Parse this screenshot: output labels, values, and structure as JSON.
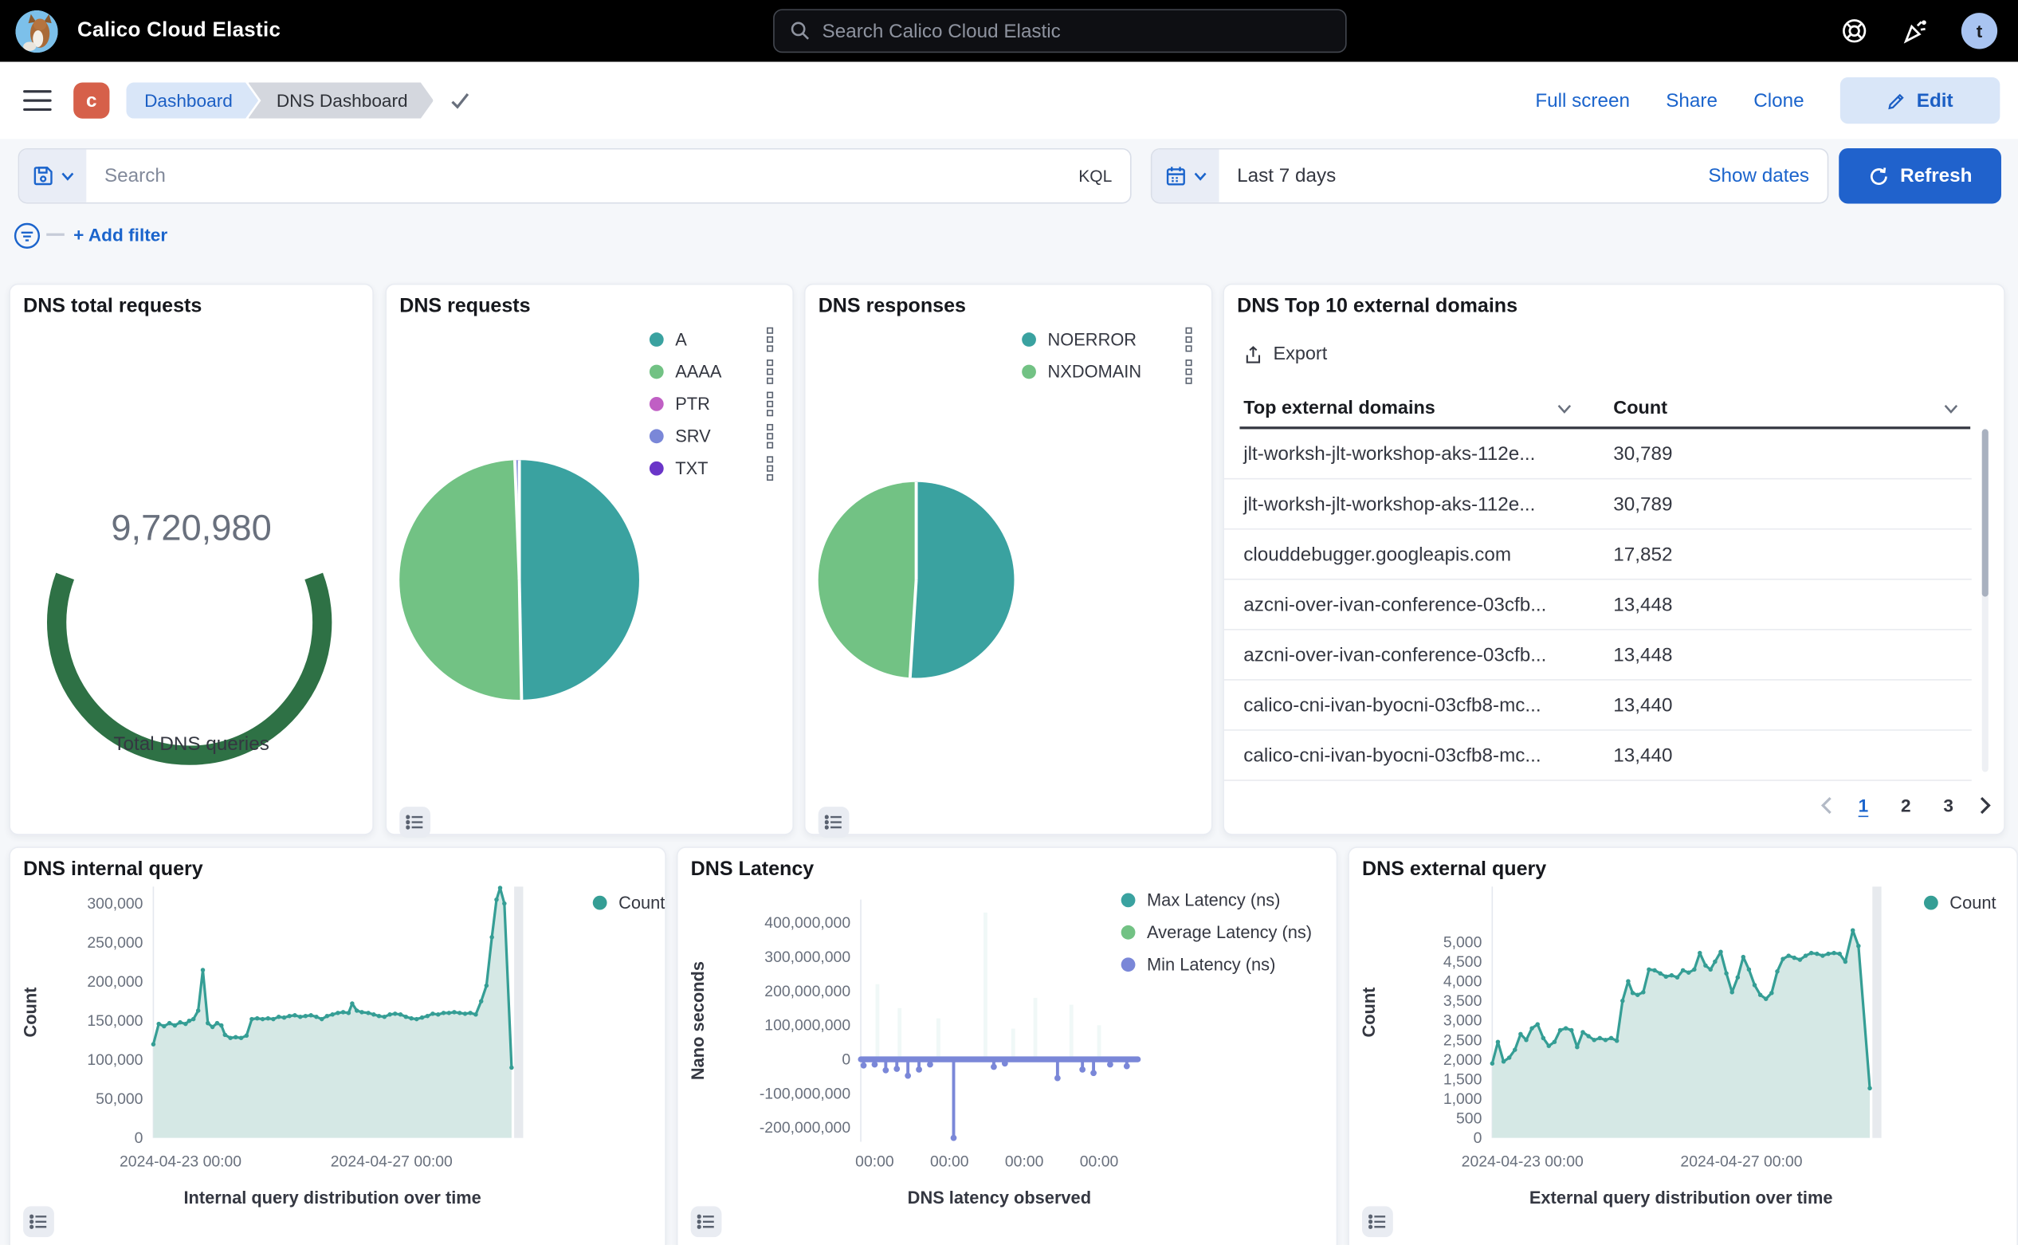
{
  "header": {
    "app_title": "Calico Cloud Elastic",
    "search_placeholder": "Search Calico Cloud Elastic",
    "avatar_initial": "t"
  },
  "nav": {
    "project_badge": "c",
    "breadcrumbs": [
      {
        "label": "Dashboard"
      },
      {
        "label": "DNS Dashboard"
      }
    ],
    "actions": {
      "full_screen": "Full screen",
      "share": "Share",
      "clone": "Clone",
      "edit": "Edit"
    }
  },
  "query_bar": {
    "search_placeholder": "Search",
    "kql_label": "KQL",
    "time_range": "Last 7 days",
    "show_dates": "Show dates",
    "refresh": "Refresh",
    "add_filter": "+ Add filter"
  },
  "colors": {
    "accent_blue": "#1b64cc",
    "refresh_blue": "#2062cc",
    "gauge_green": "#2e7145",
    "teal": "#3aa2a0",
    "green": "#72c284",
    "magenta": "#c05fc4",
    "periwinkle": "#7a87d8",
    "violet": "#6a35c8",
    "badge_orange": "#d6604a"
  },
  "panels": {
    "gauge": {
      "title": "DNS total requests"
    },
    "requests": {
      "title": "DNS requests"
    },
    "responses": {
      "title": "DNS responses"
    },
    "top_domains": {
      "title": "DNS Top 10 external domains",
      "export_label": "Export",
      "pagination": {
        "pages": [
          "1",
          "2",
          "3"
        ],
        "active": "1"
      }
    },
    "internal": {
      "title": "DNS internal query"
    },
    "latency": {
      "title": "DNS Latency"
    },
    "external": {
      "title": "DNS external query"
    }
  },
  "chart_data": [
    {
      "type": "gauge",
      "panel": "DNS total requests",
      "value": 9720980,
      "display_value": "9,720,980",
      "label": "Total DNS queries",
      "color": "#2e7145",
      "arc_sweep_degrees": 220
    },
    {
      "type": "pie",
      "panel": "DNS requests",
      "slices": [
        {
          "label": "A",
          "value": 49.7,
          "color": "#3aa2a0"
        },
        {
          "label": "AAAA",
          "value": 49.7,
          "color": "#72c284"
        },
        {
          "label": "PTR",
          "value": 0.2,
          "color": "#c05fc4"
        },
        {
          "label": "SRV",
          "value": 0.2,
          "color": "#7a87d8"
        },
        {
          "label": "TXT",
          "value": 0.2,
          "color": "#6a35c8"
        }
      ]
    },
    {
      "type": "pie",
      "panel": "DNS responses",
      "slices": [
        {
          "label": "NOERROR",
          "value": 51,
          "color": "#3aa2a0"
        },
        {
          "label": "NXDOMAIN",
          "value": 49,
          "color": "#72c284"
        }
      ]
    },
    {
      "type": "table",
      "panel": "DNS Top 10 external domains",
      "columns": [
        "Top external domains",
        "Count"
      ],
      "rows": [
        [
          "jlt-worksh-jlt-workshop-aks-112e...",
          "30,789"
        ],
        [
          "jlt-worksh-jlt-workshop-aks-112e...",
          "30,789"
        ],
        [
          "clouddebugger.googleapis.com",
          "17,852"
        ],
        [
          "azcni-over-ivan-conference-03cfb...",
          "13,448"
        ],
        [
          "azcni-over-ivan-conference-03cfb...",
          "13,448"
        ],
        [
          "calico-cni-ivan-byocni-03cfb8-mc...",
          "13,440"
        ],
        [
          "calico-cni-ivan-byocni-03cfb8-mc...",
          "13,440"
        ]
      ]
    },
    {
      "type": "area",
      "panel": "DNS internal query",
      "series": [
        {
          "name": "Count",
          "color": "#359e95",
          "fill": "#d5e8e5"
        }
      ],
      "ylabel": "Count",
      "xlabel": "Internal query distribution over time",
      "ylim": [
        0,
        330000
      ],
      "y_ticks": [
        [
          0,
          "0"
        ],
        [
          50000,
          "50,000"
        ],
        [
          100000,
          "100,000"
        ],
        [
          150000,
          "150,000"
        ],
        [
          200000,
          "200,000"
        ],
        [
          250000,
          "250,000"
        ],
        [
          300000,
          "300,000"
        ]
      ],
      "x_ticks": [
        [
          0.076,
          "2024-04-23 00:00"
        ],
        [
          0.665,
          "2024-04-27 00:00"
        ]
      ],
      "points": [
        [
          0,
          120000
        ],
        [
          0.015,
          146000
        ],
        [
          0.03,
          143000
        ],
        [
          0.045,
          147000
        ],
        [
          0.06,
          144000
        ],
        [
          0.075,
          148000
        ],
        [
          0.09,
          146000
        ],
        [
          0.1,
          150000
        ],
        [
          0.112,
          152000
        ],
        [
          0.125,
          163000
        ],
        [
          0.138,
          215000
        ],
        [
          0.152,
          147000
        ],
        [
          0.165,
          142000
        ],
        [
          0.178,
          147000
        ],
        [
          0.19,
          144000
        ],
        [
          0.2,
          132000
        ],
        [
          0.215,
          128000
        ],
        [
          0.23,
          129000
        ],
        [
          0.245,
          128000
        ],
        [
          0.26,
          131000
        ],
        [
          0.275,
          152000
        ],
        [
          0.29,
          153000
        ],
        [
          0.305,
          152000
        ],
        [
          0.32,
          153000
        ],
        [
          0.335,
          152000
        ],
        [
          0.35,
          155000
        ],
        [
          0.365,
          154000
        ],
        [
          0.38,
          156000
        ],
        [
          0.395,
          157000
        ],
        [
          0.41,
          155000
        ],
        [
          0.425,
          156000
        ],
        [
          0.44,
          157000
        ],
        [
          0.455,
          155000
        ],
        [
          0.47,
          152000
        ],
        [
          0.485,
          156000
        ],
        [
          0.5,
          158000
        ],
        [
          0.515,
          160000
        ],
        [
          0.53,
          161000
        ],
        [
          0.545,
          160000
        ],
        [
          0.555,
          172000
        ],
        [
          0.568,
          163000
        ],
        [
          0.582,
          161000
        ],
        [
          0.6,
          160000
        ],
        [
          0.615,
          158000
        ],
        [
          0.63,
          156000
        ],
        [
          0.645,
          155000
        ],
        [
          0.66,
          158000
        ],
        [
          0.675,
          159000
        ],
        [
          0.69,
          158000
        ],
        [
          0.705,
          155000
        ],
        [
          0.72,
          153000
        ],
        [
          0.735,
          152000
        ],
        [
          0.75,
          154000
        ],
        [
          0.765,
          156000
        ],
        [
          0.78,
          159000
        ],
        [
          0.795,
          158000
        ],
        [
          0.81,
          160000
        ],
        [
          0.825,
          160000
        ],
        [
          0.84,
          161000
        ],
        [
          0.855,
          160000
        ],
        [
          0.87,
          159000
        ],
        [
          0.885,
          160000
        ],
        [
          0.9,
          158000
        ],
        [
          0.915,
          175000
        ],
        [
          0.93,
          195000
        ],
        [
          0.945,
          257000
        ],
        [
          0.958,
          305000
        ],
        [
          0.968,
          320000
        ],
        [
          0.98,
          300000
        ],
        [
          1,
          90000
        ]
      ]
    },
    {
      "type": "line",
      "panel": "DNS Latency",
      "series": [
        {
          "name": "Max Latency (ns)",
          "color": "#3aa2a0"
        },
        {
          "name": "Average Latency (ns)",
          "color": "#72c284"
        },
        {
          "name": "Min Latency (ns)",
          "color": "#7a87d8"
        }
      ],
      "ylabel": "Nano seconds",
      "xlabel": "DNS latency observed",
      "ylim": [
        -230000000,
        450000000
      ],
      "y_ticks": [
        [
          400000000,
          "400,000,000"
        ],
        [
          300000000,
          "300,000,000"
        ],
        [
          200000000,
          "200,000,000"
        ],
        [
          100000000,
          "100,000,000"
        ],
        [
          0,
          "0"
        ],
        [
          -100000000,
          "-100,000,000"
        ],
        [
          -200000000,
          "-200,000,000"
        ]
      ],
      "x_ticks": [
        [
          0.05,
          "00:00"
        ],
        [
          0.32,
          "00:00"
        ],
        [
          0.59,
          "00:00"
        ],
        [
          0.86,
          "00:00"
        ]
      ],
      "baseline": 0,
      "min_spikes": [
        [
          0.01,
          -18000000
        ],
        [
          0.05,
          -15000000
        ],
        [
          0.09,
          -32000000
        ],
        [
          0.13,
          -28000000
        ],
        [
          0.17,
          -48000000
        ],
        [
          0.21,
          -30000000
        ],
        [
          0.25,
          -15000000
        ],
        [
          0.335,
          -230000000
        ],
        [
          0.48,
          -22000000
        ],
        [
          0.52,
          -12000000
        ],
        [
          0.71,
          -55000000
        ],
        [
          0.8,
          -30000000
        ],
        [
          0.84,
          -40000000
        ],
        [
          0.9,
          -15000000
        ],
        [
          0.96,
          -20000000
        ]
      ],
      "max_spikes": [
        [
          0.06,
          220000000
        ],
        [
          0.14,
          150000000
        ],
        [
          0.28,
          120000000
        ],
        [
          0.45,
          430000000
        ],
        [
          0.55,
          90000000
        ],
        [
          0.63,
          180000000
        ],
        [
          0.76,
          160000000
        ],
        [
          0.86,
          100000000
        ]
      ]
    },
    {
      "type": "area",
      "panel": "DNS external query",
      "series": [
        {
          "name": "Count",
          "color": "#359e95",
          "fill": "#d5e8e5"
        }
      ],
      "ylabel": "Count",
      "xlabel": "External query distribution over time",
      "ylim": [
        0,
        5500
      ],
      "y_ticks": [
        [
          0,
          "0"
        ],
        [
          500,
          "500"
        ],
        [
          1000,
          "1,000"
        ],
        [
          1500,
          "1,500"
        ],
        [
          2000,
          "2,000"
        ],
        [
          2500,
          "2,500"
        ],
        [
          3000,
          "3,000"
        ],
        [
          3500,
          "3,500"
        ],
        [
          4000,
          "4,000"
        ],
        [
          4500,
          "4,500"
        ],
        [
          5000,
          "5,000"
        ]
      ],
      "x_ticks": [
        [
          0.08,
          "2024-04-23 00:00"
        ],
        [
          0.66,
          "2024-04-27 00:00"
        ]
      ],
      "points": [
        [
          0,
          1900
        ],
        [
          0.015,
          2450
        ],
        [
          0.03,
          1950
        ],
        [
          0.045,
          2050
        ],
        [
          0.06,
          2250
        ],
        [
          0.075,
          2650
        ],
        [
          0.09,
          2500
        ],
        [
          0.105,
          2800
        ],
        [
          0.12,
          2900
        ],
        [
          0.135,
          2550
        ],
        [
          0.15,
          2350
        ],
        [
          0.165,
          2450
        ],
        [
          0.18,
          2750
        ],
        [
          0.195,
          2800
        ],
        [
          0.21,
          2750
        ],
        [
          0.225,
          2320
        ],
        [
          0.24,
          2700
        ],
        [
          0.255,
          2600
        ],
        [
          0.27,
          2500
        ],
        [
          0.285,
          2550
        ],
        [
          0.3,
          2500
        ],
        [
          0.315,
          2550
        ],
        [
          0.33,
          2480
        ],
        [
          0.345,
          3500
        ],
        [
          0.36,
          4000
        ],
        [
          0.372,
          3700
        ],
        [
          0.385,
          3650
        ],
        [
          0.4,
          3720
        ],
        [
          0.415,
          4300
        ],
        [
          0.43,
          4280
        ],
        [
          0.445,
          4200
        ],
        [
          0.46,
          4120
        ],
        [
          0.475,
          4150
        ],
        [
          0.49,
          4100
        ],
        [
          0.505,
          4280
        ],
        [
          0.52,
          4220
        ],
        [
          0.535,
          4300
        ],
        [
          0.55,
          4720
        ],
        [
          0.565,
          4400
        ],
        [
          0.578,
          4300
        ],
        [
          0.59,
          4500
        ],
        [
          0.605,
          4750
        ],
        [
          0.62,
          4200
        ],
        [
          0.635,
          3720
        ],
        [
          0.65,
          4100
        ],
        [
          0.665,
          4620
        ],
        [
          0.68,
          4300
        ],
        [
          0.695,
          3900
        ],
        [
          0.71,
          3650
        ],
        [
          0.725,
          3550
        ],
        [
          0.74,
          3700
        ],
        [
          0.755,
          4250
        ],
        [
          0.77,
          4570
        ],
        [
          0.785,
          4650
        ],
        [
          0.8,
          4600
        ],
        [
          0.815,
          4550
        ],
        [
          0.83,
          4650
        ],
        [
          0.845,
          4720
        ],
        [
          0.86,
          4700
        ],
        [
          0.875,
          4650
        ],
        [
          0.89,
          4700
        ],
        [
          0.905,
          4720
        ],
        [
          0.92,
          4700
        ],
        [
          0.935,
          4500
        ],
        [
          0.955,
          5300
        ],
        [
          0.97,
          4900
        ],
        [
          1,
          1270
        ]
      ]
    }
  ]
}
